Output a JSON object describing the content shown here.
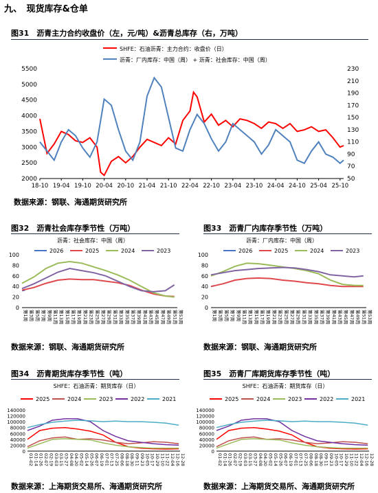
{
  "section_heading": "九、　现货库存&仓单",
  "source_steel": "数据来源：钢联、海通期货研究所",
  "source_exchange": "数据来源：上海期货交易所、海通期货研究所",
  "chart_data": [
    {
      "id": "fig31",
      "type": "line",
      "title": "图31　沥青主力合约收盘价（左，元/吨）&沥青总库存（右，万吨）",
      "x_ticks": [
        "18-10",
        "19-04",
        "19-10",
        "20-04",
        "20-10",
        "21-04",
        "21-10",
        "22-04",
        "22-10",
        "23-04",
        "23-10",
        "24-04",
        "24-10",
        "25-04",
        "25-10"
      ],
      "ylim_left": [
        2000,
        5500
      ],
      "yticks_left": [
        2000,
        2500,
        3000,
        3500,
        4000,
        4500,
        5000,
        5500
      ],
      "ylim_right": [
        50,
        230
      ],
      "yticks_right": [
        50,
        70,
        90,
        110,
        130,
        150,
        170,
        190,
        210,
        230
      ],
      "series": [
        {
          "name": "SHFE：石油沥青：主力合约：收盘价（日）",
          "color": "#ff0000",
          "axis": "left",
          "x": [
            "2018-10",
            "2018-12",
            "2019-02",
            "2019-04",
            "2019-06",
            "2019-08",
            "2019-10",
            "2019-12",
            "2020-02",
            "2020-03",
            "2020-04",
            "2020-06",
            "2020-08",
            "2020-10",
            "2020-12",
            "2021-02",
            "2021-04",
            "2021-06",
            "2021-08",
            "2021-10",
            "2021-12",
            "2022-02",
            "2022-04",
            "2022-05",
            "2022-06",
            "2022-08",
            "2022-10",
            "2022-12",
            "2023-02",
            "2023-04",
            "2023-06",
            "2023-08",
            "2023-10",
            "2023-12",
            "2024-02",
            "2024-04",
            "2024-06",
            "2024-08",
            "2024-10",
            "2024-12",
            "2025-02",
            "2025-04",
            "2025-06",
            "2025-08",
            "2025-10",
            "2025-11"
          ],
          "values": [
            3900,
            2800,
            3100,
            3500,
            3400,
            3200,
            3150,
            3300,
            3000,
            2200,
            2100,
            2550,
            2700,
            2500,
            2700,
            3000,
            3250,
            3150,
            3050,
            3300,
            3100,
            3850,
            4150,
            4750,
            4600,
            3800,
            4050,
            3700,
            3850,
            3650,
            3900,
            3850,
            3750,
            3600,
            3800,
            3750,
            3600,
            3750,
            3500,
            3550,
            3650,
            3500,
            3550,
            3300,
            3000,
            3050
          ]
        },
        {
          "name": "沥青：厂内库存：中国（周） + 沥青：社会库存：中国（周）",
          "color": "#4f81bd",
          "axis": "right",
          "x": [
            "2018-10",
            "2018-12",
            "2019-02",
            "2019-04",
            "2019-06",
            "2019-08",
            "2019-10",
            "2019-12",
            "2020-02",
            "2020-04",
            "2020-06",
            "2020-08",
            "2020-10",
            "2020-12",
            "2021-02",
            "2021-04",
            "2021-06",
            "2021-08",
            "2021-10",
            "2021-12",
            "2022-02",
            "2022-04",
            "2022-06",
            "2022-08",
            "2022-10",
            "2022-12",
            "2023-02",
            "2023-04",
            "2023-06",
            "2023-08",
            "2023-10",
            "2023-12",
            "2024-02",
            "2024-04",
            "2024-06",
            "2024-08",
            "2024-10",
            "2024-12",
            "2025-02",
            "2025-04",
            "2025-06",
            "2025-08",
            "2025-10",
            "2025-11"
          ],
          "values": [
            110,
            95,
            80,
            110,
            130,
            120,
            100,
            85,
            110,
            180,
            170,
            130,
            95,
            80,
            110,
            185,
            215,
            200,
            150,
            100,
            95,
            130,
            155,
            140,
            115,
            95,
            110,
            140,
            130,
            120,
            110,
            90,
            105,
            130,
            120,
            110,
            80,
            75,
            95,
            110,
            90,
            85,
            75,
            80
          ]
        }
      ]
    },
    {
      "id": "fig32",
      "type": "line",
      "title": "图32　沥青社会库存季节性（万吨）",
      "subtitle": "沥青：社会库存：中国（周）",
      "x_ticks": [
        "第1周",
        "第3周",
        "第5周",
        "第7周",
        "第9周",
        "第11周",
        "第13周",
        "第15周",
        "第17周",
        "第19周",
        "第21周",
        "第23周",
        "第25周",
        "第27周",
        "第29周",
        "第31周",
        "第33周",
        "第35周",
        "第37周",
        "第39周",
        "第41周",
        "第43周",
        "第45周",
        "第47周",
        "第49周",
        "第51周",
        "第53周"
      ],
      "ylim": [
        0,
        100
      ],
      "yticks": [
        0,
        20,
        40,
        60,
        80,
        100
      ],
      "series": [
        {
          "name": "2026",
          "color": "#4472c4",
          "weeks": [
            1,
            2
          ],
          "values": [
            32,
            33
          ]
        },
        {
          "name": "2025",
          "color": "#e0474c",
          "weeks": [
            1,
            5,
            9,
            13,
            17,
            21,
            25,
            29,
            33,
            37,
            41,
            45,
            49,
            52
          ],
          "values": [
            33,
            38,
            46,
            52,
            54,
            53,
            53,
            50,
            47,
            42,
            33,
            26,
            22,
            21
          ]
        },
        {
          "name": "2024",
          "color": "#9bbb59",
          "weeks": [
            1,
            5,
            9,
            13,
            17,
            21,
            25,
            29,
            33,
            37,
            41,
            45,
            49,
            52
          ],
          "values": [
            46,
            58,
            74,
            84,
            87,
            84,
            77,
            70,
            62,
            52,
            40,
            28,
            22,
            20
          ]
        },
        {
          "name": "2023",
          "color": "#8064a2",
          "weeks": [
            1,
            5,
            9,
            13,
            17,
            21,
            25,
            29,
            33,
            37,
            41,
            45,
            49,
            52
          ],
          "values": [
            36,
            45,
            56,
            67,
            74,
            70,
            66,
            60,
            50,
            40,
            32,
            30,
            32,
            43
          ]
        }
      ]
    },
    {
      "id": "fig33",
      "type": "line",
      "title": "图33　沥青厂内库存季节性（万吨）",
      "subtitle": "沥青：厂内库存：中国（周）",
      "x_ticks": [
        "第1周",
        "第3周",
        "第5周",
        "第7周",
        "第9周",
        "第11周",
        "第13周",
        "第15周",
        "第17周",
        "第19周",
        "第21周",
        "第23周",
        "第25周",
        "第27周",
        "第29周",
        "第31周",
        "第33周",
        "第35周",
        "第37周",
        "第39周",
        "第41周",
        "第43周",
        "第45周",
        "第47周",
        "第49周",
        "第51周",
        "第53周"
      ],
      "ylim": [
        0,
        100
      ],
      "yticks": [
        0,
        20,
        40,
        60,
        80,
        100
      ],
      "series": [
        {
          "name": "2026",
          "color": "#4472c4",
          "weeks": [
            1,
            2
          ],
          "values": [
            40,
            41
          ]
        },
        {
          "name": "2025",
          "color": "#e0474c",
          "weeks": [
            1,
            5,
            9,
            13,
            17,
            21,
            25,
            29,
            33,
            37,
            41,
            45,
            49,
            52
          ],
          "values": [
            40,
            45,
            52,
            55,
            56,
            55,
            52,
            50,
            47,
            45,
            42,
            40,
            40,
            40
          ]
        },
        {
          "name": "2024",
          "color": "#9bbb59",
          "weeks": [
            1,
            5,
            9,
            13,
            17,
            21,
            25,
            29,
            33,
            37,
            41,
            45,
            49,
            52
          ],
          "values": [
            60,
            68,
            78,
            84,
            83,
            80,
            77,
            74,
            70,
            64,
            52,
            44,
            42,
            42
          ]
        },
        {
          "name": "2023",
          "color": "#8064a2",
          "weeks": [
            1,
            5,
            9,
            13,
            17,
            21,
            25,
            29,
            33,
            37,
            41,
            45,
            49,
            52
          ],
          "values": [
            62,
            66,
            70,
            72,
            74,
            75,
            76,
            75,
            72,
            68,
            62,
            60,
            58,
            60
          ]
        }
      ]
    },
    {
      "id": "fig34",
      "type": "line",
      "title": "图34　沥青期货库存季节性（吨）",
      "subtitle": "SHFE：石油沥青：期货库存（日）",
      "x_ticks": [
        "01-02",
        "01-14",
        "01-26",
        "02-07",
        "02-19",
        "03-03",
        "03-15",
        "03-27",
        "04-08",
        "04-20",
        "05-02",
        "05-14",
        "05-26",
        "06-07",
        "06-19",
        "07-01",
        "07-13",
        "07-25",
        "08-06",
        "08-18",
        "08-30",
        "09-11",
        "09-23",
        "10-05",
        "10-17",
        "10-29",
        "11-10",
        "11-22",
        "12-04",
        "12-16",
        "12-28"
      ],
      "ylim": [
        0,
        140000
      ],
      "yticks": [
        0,
        20000,
        40000,
        60000,
        80000,
        100000,
        120000,
        140000
      ],
      "series": [
        {
          "name": "2025",
          "color": "#ff0000",
          "days": [
            1,
            30,
            60,
            90,
            120,
            150,
            180,
            210,
            240,
            270,
            300,
            330,
            360
          ],
          "values": [
            40000,
            70000,
            78000,
            80000,
            75000,
            68000,
            55000,
            30000,
            15000,
            10000,
            8000,
            7000,
            8000
          ]
        },
        {
          "name": "2024",
          "color": "#c0504d",
          "days": [
            1,
            30,
            60,
            90,
            120,
            150,
            180,
            210,
            240,
            270,
            300,
            330,
            360
          ],
          "values": [
            15000,
            35000,
            45000,
            48000,
            40000,
            42000,
            38000,
            30000,
            25000,
            28000,
            32000,
            30000,
            25000
          ]
        },
        {
          "name": "2023",
          "color": "#9bbb59",
          "days": [
            1,
            30,
            60,
            90,
            120,
            150,
            180,
            210,
            240,
            270,
            300,
            330,
            360
          ],
          "values": [
            10000,
            25000,
            40000,
            42000,
            40000,
            38000,
            28000,
            20000,
            15000,
            12000,
            10000,
            10000,
            10000
          ]
        },
        {
          "name": "2022",
          "color": "#7030a0",
          "days": [
            1,
            30,
            60,
            90,
            120,
            150,
            180,
            210,
            240,
            270,
            300,
            330,
            360
          ],
          "values": [
            70000,
            85000,
            105000,
            110000,
            110000,
            100000,
            70000,
            50000,
            35000,
            30000,
            25000,
            22000,
            20000
          ]
        },
        {
          "name": "2021",
          "color": "#4bacc6",
          "days": [
            1,
            30,
            60,
            90,
            120,
            150,
            180,
            210,
            240,
            270,
            300,
            330,
            360
          ],
          "values": [
            80000,
            90000,
            98000,
            102000,
            105000,
            103000,
            100000,
            102000,
            100000,
            100000,
            98000,
            95000,
            88000
          ]
        }
      ]
    },
    {
      "id": "fig35",
      "type": "line",
      "title": "图35　沥青厂库期货库存季节性（吨）",
      "subtitle": "SHFE：石油沥青：期货库存（日）",
      "x_ticks": [
        "01-02",
        "01-14",
        "01-26",
        "02-07",
        "02-19",
        "03-03",
        "03-15",
        "03-27",
        "04-08",
        "04-20",
        "05-02",
        "05-14",
        "05-26",
        "06-07",
        "06-19",
        "07-01",
        "07-13",
        "07-25",
        "08-06",
        "08-18",
        "08-30",
        "09-11",
        "09-23",
        "10-05",
        "10-17",
        "10-29",
        "11-10",
        "11-22",
        "12-04",
        "12-16",
        "12-28"
      ],
      "ylim": [
        0,
        140000
      ],
      "yticks": [
        0,
        20000,
        40000,
        60000,
        80000,
        100000,
        120000,
        140000
      ],
      "series": [
        {
          "name": "2025",
          "color": "#ff0000",
          "days": [
            1,
            30,
            60,
            90,
            120,
            150,
            180,
            210,
            240,
            270,
            300,
            330,
            360
          ],
          "values": [
            40000,
            70000,
            78000,
            80000,
            75000,
            68000,
            55000,
            30000,
            15000,
            10000,
            8000,
            7000,
            8000
          ]
        },
        {
          "name": "2024",
          "color": "#c0504d",
          "days": [
            1,
            30,
            60,
            90,
            120,
            150,
            180,
            210,
            240,
            270,
            300,
            330,
            360
          ],
          "values": [
            15000,
            35000,
            45000,
            48000,
            40000,
            42000,
            38000,
            30000,
            25000,
            28000,
            32000,
            30000,
            25000
          ]
        },
        {
          "name": "2023",
          "color": "#9bbb59",
          "days": [
            1,
            30,
            60,
            90,
            120,
            150,
            180,
            210,
            240,
            270,
            300,
            330,
            360
          ],
          "values": [
            10000,
            25000,
            40000,
            42000,
            40000,
            38000,
            28000,
            20000,
            15000,
            12000,
            10000,
            10000,
            10000
          ]
        },
        {
          "name": "2022",
          "color": "#7030a0",
          "days": [
            1,
            30,
            60,
            90,
            120,
            150,
            180,
            210,
            240,
            270,
            300,
            330,
            360
          ],
          "values": [
            70000,
            85000,
            105000,
            110000,
            110000,
            100000,
            70000,
            50000,
            35000,
            30000,
            25000,
            22000,
            20000
          ]
        },
        {
          "name": "2021",
          "color": "#4bacc6",
          "days": [
            1,
            30,
            60,
            90,
            120,
            150,
            180,
            210,
            240,
            270,
            300,
            330,
            360
          ],
          "values": [
            80000,
            90000,
            98000,
            102000,
            105000,
            103000,
            100000,
            102000,
            100000,
            100000,
            98000,
            95000,
            88000
          ]
        }
      ]
    }
  ]
}
